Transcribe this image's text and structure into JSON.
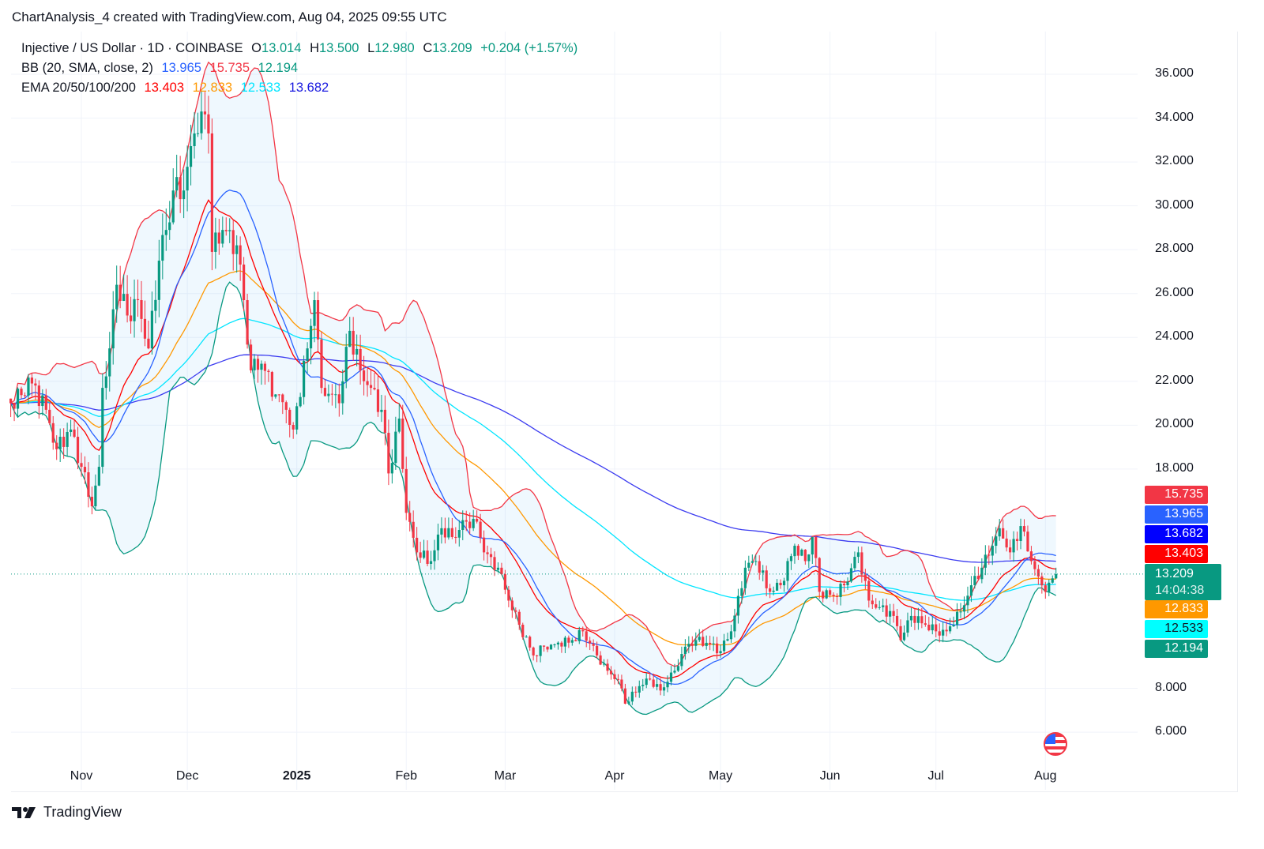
{
  "caption": "ChartAnalysis_4 created with TradingView.com, Aug 04, 2025 09:55 UTC",
  "legend": {
    "symbol": "Injective / US Dollar · 1D · COINBASE",
    "o_label": "O",
    "o": "13.014",
    "h_label": "H",
    "h": "13.500",
    "l_label": "L",
    "l": "12.980",
    "c_label": "C",
    "c": "13.209",
    "change": "+0.204 (+1.57%)",
    "bb_label": "BB (20, SMA, close, 2)",
    "bb_basis": "13.965",
    "bb_upper": "15.735",
    "bb_lower": "12.194",
    "ema_label": "EMA 20/50/100/200",
    "ema20": "13.403",
    "ema50": "12.833",
    "ema100": "12.533",
    "ema200": "13.682"
  },
  "price_tags": [
    {
      "value": "15.735",
      "color": "#f23645",
      "text_color": "#ffffff",
      "price": 15.735
    },
    {
      "value": "13.965",
      "color": "#2962ff",
      "text_color": "#ffffff",
      "price": 13.965
    },
    {
      "value": "13.682",
      "color": "#0000ff",
      "text_color": "#ffffff",
      "price": 13.682
    },
    {
      "value": "13.403",
      "color": "#ff0000",
      "text_color": "#ffffff",
      "price": 13.403
    },
    {
      "value": "12.833",
      "color": "#ff9800",
      "text_color": "#ffffff",
      "price": 12.833
    },
    {
      "value": "12.533",
      "color": "#00ffff",
      "text_color": "#131722",
      "price": 12.533
    },
    {
      "value": "12.194",
      "color": "#089981",
      "text_color": "#ffffff",
      "price": 12.194
    }
  ],
  "last_price_tag": {
    "value": "13.209",
    "countdown": "14:04:38",
    "color": "#089981"
  },
  "footer": {
    "brand": "TradingView"
  },
  "chart_data": {
    "type": "candlestick",
    "symbol": "INJ/USD",
    "interval": "1D",
    "ylim": [
      5,
      37
    ],
    "y_scale": "linear",
    "y_ticks": [
      "36.000",
      "34.000",
      "32.000",
      "30.000",
      "28.000",
      "26.000",
      "24.000",
      "22.000",
      "20.000",
      "18.000",
      "8.000",
      "6.000"
    ],
    "x_ticks": [
      {
        "label": "Nov",
        "date": "2024-11-01"
      },
      {
        "label": "Dec",
        "date": "2024-12-01"
      },
      {
        "label": "2025",
        "date": "2025-01-01",
        "bold": true
      },
      {
        "label": "Feb",
        "date": "2025-02-01"
      },
      {
        "label": "Mar",
        "date": "2025-03-01"
      },
      {
        "label": "Apr",
        "date": "2025-04-01"
      },
      {
        "label": "May",
        "date": "2025-05-01"
      },
      {
        "label": "Jun",
        "date": "2025-06-01"
      },
      {
        "label": "Jul",
        "date": "2025-07-01"
      },
      {
        "label": "Aug",
        "date": "2025-08-01"
      }
    ],
    "colors": {
      "up": "#089981",
      "down": "#f23645",
      "bb_basis": "#2962ff",
      "bb_upper": "#f23645",
      "bb_lower": "#089981",
      "bb_fill": "#2196f3",
      "ema20": "#ff0000",
      "ema50": "#ff9800",
      "ema100": "#00e5ff",
      "ema200": "#3c3cf0"
    },
    "indicators": {
      "bb": {
        "length": 20,
        "mult": 2
      },
      "ema": [
        20,
        50,
        100,
        200
      ]
    },
    "last_candle": {
      "date": "2025-08-04",
      "open": 13.014,
      "high": 13.5,
      "low": 12.98,
      "close": 13.209
    },
    "closes": [
      [
        "2024-10-12",
        21.0
      ],
      [
        "2024-10-18",
        21.9
      ],
      [
        "2024-10-22",
        20.7
      ],
      [
        "2024-10-25",
        18.9
      ],
      [
        "2024-10-29",
        19.8
      ],
      [
        "2024-11-01",
        18.1
      ],
      [
        "2024-11-04",
        16.3
      ],
      [
        "2024-11-06",
        18.1
      ],
      [
        "2024-11-07",
        21.7
      ],
      [
        "2024-11-09",
        23.5
      ],
      [
        "2024-11-11",
        26.4
      ],
      [
        "2024-11-14",
        25.0
      ],
      [
        "2024-11-17",
        25.7
      ],
      [
        "2024-11-20",
        23.5
      ],
      [
        "2024-11-23",
        27.5
      ],
      [
        "2024-11-25",
        28.9
      ],
      [
        "2024-11-27",
        30.7
      ],
      [
        "2024-11-30",
        30.7
      ],
      [
        "2024-12-03",
        33.3
      ],
      [
        "2024-12-05",
        34.3
      ],
      [
        "2024-12-07",
        33.3
      ],
      [
        "2024-12-08",
        27.9
      ],
      [
        "2024-12-11",
        28.9
      ],
      [
        "2024-12-15",
        28.2
      ],
      [
        "2024-12-17",
        25.7
      ],
      [
        "2024-12-19",
        22.5
      ],
      [
        "2024-12-22",
        22.8
      ],
      [
        "2024-12-26",
        21.4
      ],
      [
        "2024-12-29",
        20.7
      ],
      [
        "2024-12-31",
        19.8
      ],
      [
        "2025-01-04",
        23.5
      ],
      [
        "2025-01-06",
        25.7
      ],
      [
        "2025-01-08",
        21.7
      ],
      [
        "2025-01-11",
        21.4
      ],
      [
        "2025-01-13",
        21.0
      ],
      [
        "2025-01-16",
        24.3
      ],
      [
        "2025-01-19",
        22.5
      ],
      [
        "2025-01-22",
        21.7
      ],
      [
        "2025-01-25",
        20.7
      ],
      [
        "2025-01-27",
        17.8
      ],
      [
        "2025-01-30",
        20.3
      ],
      [
        "2025-02-01",
        16.0
      ],
      [
        "2025-02-04",
        14.2
      ],
      [
        "2025-02-08",
        13.8
      ],
      [
        "2025-02-11",
        15.3
      ],
      [
        "2025-02-14",
        14.9
      ],
      [
        "2025-02-18",
        15.6
      ],
      [
        "2025-02-21",
        15.6
      ],
      [
        "2025-02-23",
        14.2
      ],
      [
        "2025-02-27",
        13.5
      ],
      [
        "2025-03-02",
        12.0
      ],
      [
        "2025-03-05",
        10.9
      ],
      [
        "2025-03-09",
        9.5
      ],
      [
        "2025-03-12",
        9.9
      ],
      [
        "2025-03-15",
        10.0
      ],
      [
        "2025-03-20",
        10.2
      ],
      [
        "2025-03-23",
        10.6
      ],
      [
        "2025-03-27",
        9.5
      ],
      [
        "2025-03-30",
        8.8
      ],
      [
        "2025-04-02",
        8.4
      ],
      [
        "2025-04-04",
        7.3
      ],
      [
        "2025-04-08",
        8.1
      ],
      [
        "2025-04-11",
        8.4
      ],
      [
        "2025-04-14",
        7.9
      ],
      [
        "2025-04-18",
        8.8
      ],
      [
        "2025-04-21",
        9.9
      ],
      [
        "2025-04-24",
        10.2
      ],
      [
        "2025-04-28",
        10.0
      ],
      [
        "2025-05-01",
        9.7
      ],
      [
        "2025-05-04",
        10.6
      ],
      [
        "2025-05-08",
        13.5
      ],
      [
        "2025-05-11",
        13.8
      ],
      [
        "2025-05-15",
        12.4
      ],
      [
        "2025-05-18",
        12.7
      ],
      [
        "2025-05-22",
        14.5
      ],
      [
        "2025-05-25",
        13.8
      ],
      [
        "2025-05-27",
        14.9
      ],
      [
        "2025-05-29",
        12.4
      ],
      [
        "2025-06-02",
        12.2
      ],
      [
        "2025-06-05",
        12.7
      ],
      [
        "2025-06-09",
        14.2
      ],
      [
        "2025-06-12",
        12.0
      ],
      [
        "2025-06-15",
        11.7
      ],
      [
        "2025-06-19",
        11.3
      ],
      [
        "2025-06-21",
        10.2
      ],
      [
        "2025-06-24",
        11.3
      ],
      [
        "2025-06-28",
        10.9
      ],
      [
        "2025-07-01",
        10.6
      ],
      [
        "2025-07-04",
        10.6
      ],
      [
        "2025-07-08",
        11.5
      ],
      [
        "2025-07-11",
        12.7
      ],
      [
        "2025-07-14",
        13.5
      ],
      [
        "2025-07-17",
        14.5
      ],
      [
        "2025-07-19",
        15.3
      ],
      [
        "2025-07-22",
        14.2
      ],
      [
        "2025-07-25",
        15.4
      ],
      [
        "2025-07-28",
        13.8
      ],
      [
        "2025-07-30",
        13.1
      ],
      [
        "2025-08-01",
        12.4
      ],
      [
        "2025-08-03",
        13.014
      ]
    ]
  }
}
